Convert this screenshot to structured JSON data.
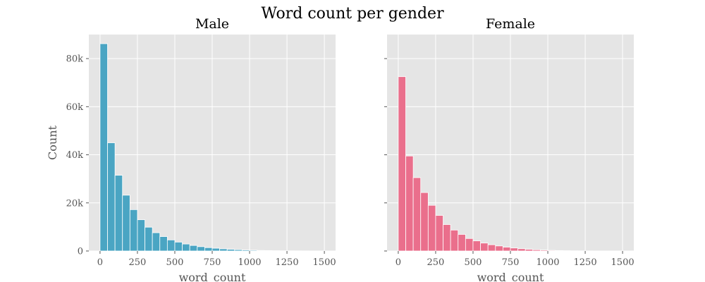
{
  "figure": {
    "title": "Word count per gender",
    "panels": [
      "Male",
      "Female"
    ]
  },
  "chart_data": [
    {
      "type": "bar",
      "title": "Male",
      "xlabel": "word_count",
      "ylabel": "Count",
      "xlim": [
        -75,
        1575
      ],
      "ylim": [
        0,
        90000
      ],
      "x_ticks": [
        0,
        250,
        500,
        750,
        1000,
        1250,
        1500
      ],
      "y_ticks": [
        0,
        20000,
        40000,
        60000,
        80000
      ],
      "x_tick_labels": [
        "0",
        "250",
        "500",
        "750",
        "1000",
        "1250",
        "1500"
      ],
      "y_tick_labels": [
        "0",
        "20k",
        "40k",
        "60k",
        "80k"
      ],
      "bin_width": 50,
      "bin_starts": [
        0,
        50,
        100,
        150,
        200,
        250,
        300,
        350,
        400,
        450,
        500,
        550,
        600,
        650,
        700,
        750,
        800,
        850,
        900,
        950,
        1000,
        1050,
        1100,
        1150,
        1200,
        1250,
        1300,
        1350,
        1400,
        1450
      ],
      "values": [
        86200,
        45000,
        31500,
        23200,
        17200,
        13000,
        9900,
        7600,
        6000,
        4600,
        3700,
        2900,
        2300,
        1800,
        1400,
        1150,
        900,
        700,
        550,
        420,
        320,
        240,
        180,
        130,
        100,
        75,
        55,
        40,
        30,
        20
      ],
      "color": "#4aa5c3",
      "grid": true
    },
    {
      "type": "bar",
      "title": "Female",
      "xlabel": "word_count",
      "ylabel": "",
      "xlim": [
        -75,
        1575
      ],
      "ylim": [
        0,
        90000
      ],
      "x_ticks": [
        0,
        250,
        500,
        750,
        1000,
        1250,
        1500
      ],
      "y_ticks": [
        0,
        20000,
        40000,
        60000,
        80000
      ],
      "x_tick_labels": [
        "0",
        "250",
        "500",
        "750",
        "1000",
        "1250",
        "1500"
      ],
      "y_tick_labels": [],
      "bin_width": 50,
      "bin_starts": [
        0,
        50,
        100,
        150,
        200,
        250,
        300,
        350,
        400,
        450,
        500,
        550,
        600,
        650,
        700,
        750,
        800,
        850,
        900,
        950,
        1000,
        1050,
        1100,
        1150,
        1200,
        1250,
        1300,
        1350,
        1400,
        1450
      ],
      "values": [
        72500,
        39500,
        30500,
        24300,
        19000,
        14800,
        11000,
        8700,
        6900,
        5200,
        4200,
        3300,
        2600,
        2100,
        1600,
        1250,
        950,
        700,
        520,
        380,
        260,
        180,
        120,
        80,
        55,
        40,
        30,
        20,
        15,
        10
      ],
      "color": "#ea6f8c",
      "grid": true
    }
  ]
}
